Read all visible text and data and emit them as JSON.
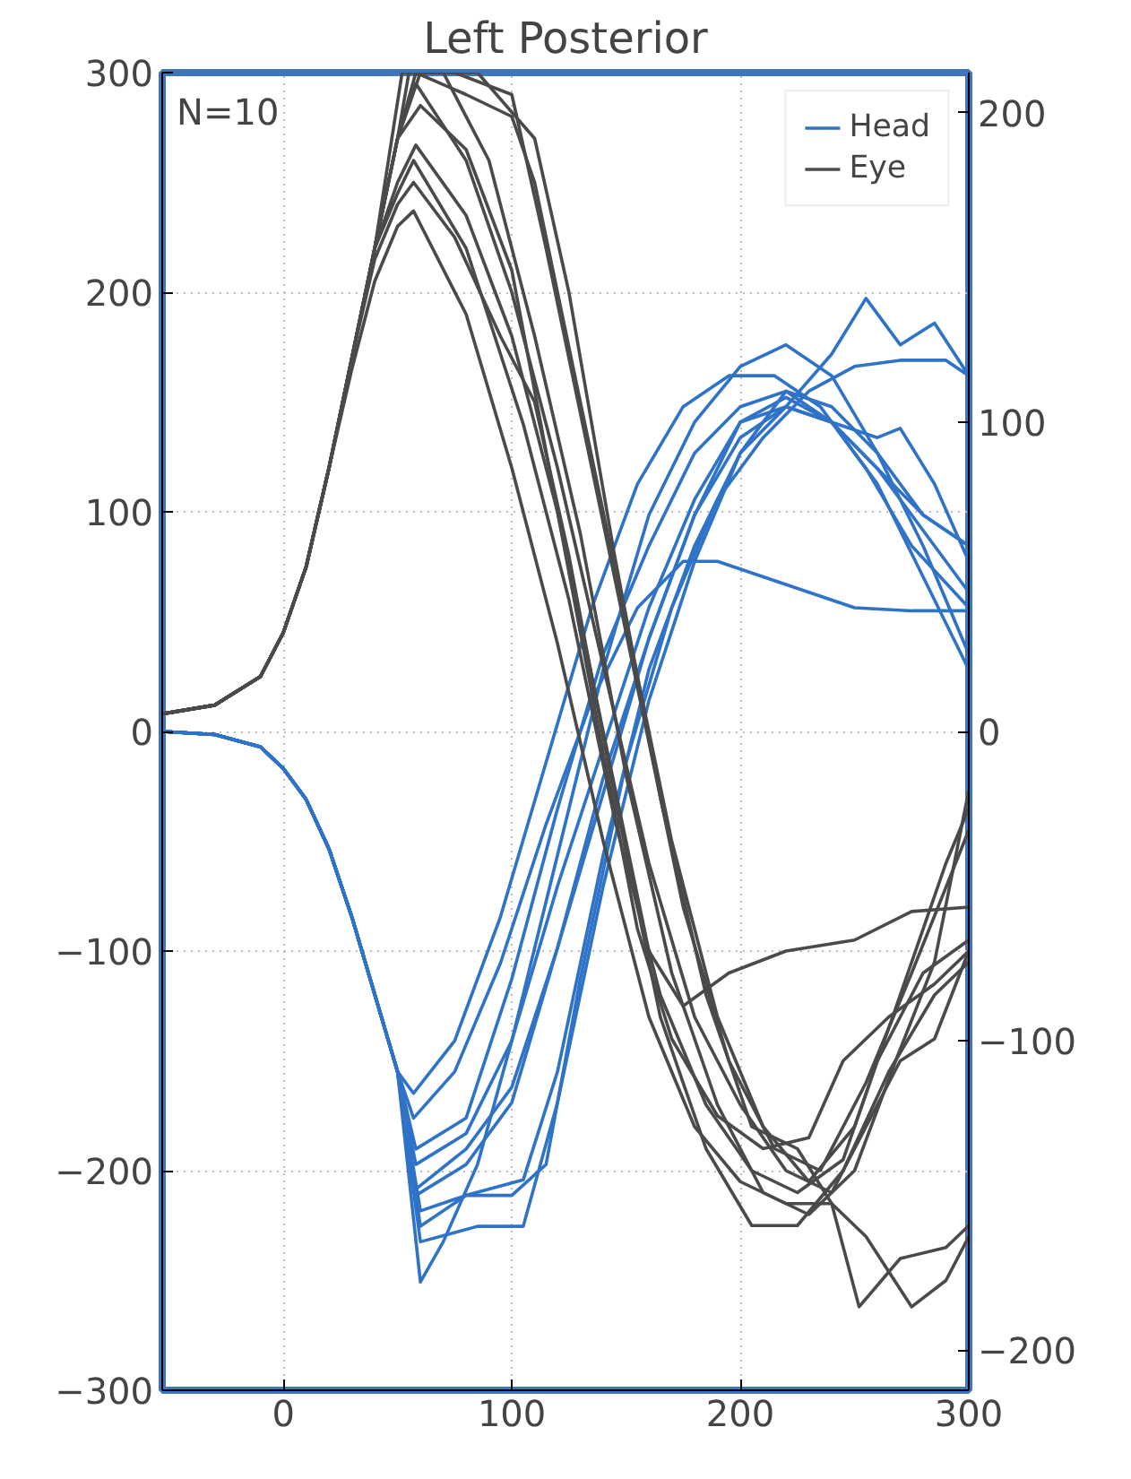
{
  "chart_data": {
    "type": "line",
    "title": "Left Posterior",
    "annotations": [
      "N=10"
    ],
    "xlim": [
      -53,
      300
    ],
    "xticks": [
      0,
      100,
      200,
      300
    ],
    "ylim": [
      -300,
      300
    ],
    "yticks": [
      -300,
      -200,
      -100,
      0,
      100,
      200,
      300
    ],
    "y2lim": [
      -213,
      213
    ],
    "y2ticks": [
      -200,
      -100,
      0,
      100,
      200
    ],
    "grid": true,
    "legend": "top right",
    "series": [
      {
        "name": "Head",
        "color": "#2f73c8",
        "axis": "y2",
        "x": [
          -53,
          -30,
          -10,
          0,
          10,
          20,
          30,
          40,
          50,
          60,
          70,
          85,
          100,
          120,
          140,
          160,
          180,
          200,
          220,
          240,
          260,
          280,
          300
        ],
        "values": [
          0,
          -1,
          -5,
          -12,
          -22,
          -38,
          -60,
          -85,
          -110,
          -178,
          -165,
          -140,
          -100,
          -40,
          20,
          70,
          100,
          118,
          125,
          115,
          90,
          60,
          25
        ]
      },
      {
        "color": "#2f73c8",
        "axis": "y2",
        "x": [
          -53,
          -30,
          -10,
          0,
          10,
          20,
          30,
          40,
          50,
          57,
          75,
          95,
          115,
          135,
          155,
          175,
          195,
          215,
          235,
          255,
          275,
          300
        ],
        "values": [
          0,
          -1,
          -5,
          -12,
          -22,
          -38,
          -60,
          -85,
          -110,
          -117,
          -100,
          -60,
          -10,
          40,
          80,
          105,
          115,
          115,
          105,
          85,
          60,
          40
        ]
      },
      {
        "color": "#2f73c8",
        "axis": "y2",
        "x": [
          -53,
          -30,
          -10,
          0,
          10,
          20,
          30,
          40,
          50,
          57,
          75,
          95,
          115,
          135,
          155,
          175,
          190,
          210,
          230,
          250,
          275,
          300
        ],
        "values": [
          0,
          -1,
          -5,
          -12,
          -22,
          -38,
          -60,
          -85,
          -110,
          -125,
          -110,
          -75,
          -30,
          10,
          40,
          55,
          55,
          50,
          45,
          40,
          39,
          39
        ]
      },
      {
        "color": "#2f73c8",
        "axis": "y2",
        "x": [
          -53,
          -30,
          -10,
          0,
          10,
          20,
          30,
          40,
          50,
          58,
          80,
          100,
          120,
          140,
          160,
          180,
          200,
          220,
          240,
          260,
          270,
          285,
          300
        ],
        "values": [
          0,
          -1,
          -5,
          -12,
          -22,
          -38,
          -60,
          -85,
          -110,
          -135,
          -125,
          -80,
          -25,
          25,
          60,
          90,
          105,
          110,
          100,
          95,
          98,
          80,
          55
        ]
      },
      {
        "color": "#2f73c8",
        "axis": "y2",
        "x": [
          -53,
          -30,
          -10,
          0,
          10,
          20,
          30,
          40,
          50,
          58,
          80,
          100,
          120,
          140,
          160,
          180,
          200,
          220,
          240,
          260,
          280,
          300
        ],
        "values": [
          0,
          -1,
          -5,
          -12,
          -22,
          -38,
          -60,
          -85,
          -110,
          -140,
          -130,
          -100,
          -50,
          -5,
          40,
          75,
          100,
          105,
          100,
          85,
          65,
          45
        ]
      },
      {
        "color": "#2f73c8",
        "axis": "y2",
        "x": [
          -53,
          -30,
          -10,
          0,
          10,
          20,
          30,
          40,
          50,
          58,
          80,
          100,
          120,
          140,
          160,
          180,
          200,
          220,
          240,
          260,
          280,
          300
        ],
        "values": [
          0,
          -1,
          -5,
          -12,
          -22,
          -38,
          -60,
          -85,
          -110,
          -150,
          -140,
          -120,
          -70,
          -15,
          30,
          70,
          100,
          108,
          100,
          80,
          50,
          20
        ]
      },
      {
        "color": "#2f73c8",
        "axis": "y2",
        "x": [
          -53,
          -30,
          -10,
          0,
          10,
          20,
          30,
          40,
          50,
          60,
          80,
          105,
          120,
          140,
          160,
          180,
          200,
          220,
          240,
          255,
          270,
          285,
          300
        ],
        "values": [
          0,
          -1,
          -5,
          -12,
          -22,
          -38,
          -60,
          -85,
          -110,
          -155,
          -150,
          -145,
          -110,
          -40,
          20,
          60,
          90,
          105,
          122,
          140,
          125,
          132,
          115
        ]
      },
      {
        "color": "#2f73c8",
        "axis": "y2",
        "x": [
          -53,
          -30,
          -10,
          0,
          10,
          20,
          30,
          40,
          50,
          60,
          80,
          100,
          115,
          130,
          150,
          170,
          190,
          210,
          230,
          250,
          270,
          290,
          300
        ],
        "values": [
          0,
          -1,
          -5,
          -12,
          -22,
          -38,
          -60,
          -85,
          -110,
          -160,
          -150,
          -150,
          -140,
          -80,
          -10,
          40,
          75,
          95,
          110,
          118,
          120,
          120,
          115
        ]
      },
      {
        "color": "#2f73c8",
        "axis": "y2",
        "x": [
          -53,
          -30,
          -10,
          0,
          10,
          20,
          30,
          40,
          50,
          60,
          85,
          105,
          120,
          140,
          160,
          180,
          200,
          220,
          240,
          260,
          280,
          300
        ],
        "values": [
          0,
          -1,
          -5,
          -12,
          -22,
          -38,
          -60,
          -85,
          -110,
          -165,
          -160,
          -160,
          -120,
          -50,
          10,
          55,
          90,
          110,
          105,
          90,
          70,
          60
        ]
      },
      {
        "color": "#2f73c8",
        "axis": "y2",
        "x": [
          -53,
          -30,
          -10,
          0,
          10,
          20,
          30,
          40,
          50,
          58,
          80,
          100,
          120,
          140,
          160,
          180,
          200,
          220,
          240,
          260,
          280,
          300
        ],
        "values": [
          0,
          -1,
          -5,
          -12,
          -22,
          -38,
          -60,
          -85,
          -110,
          -148,
          -135,
          -115,
          -70,
          -20,
          30,
          70,
          95,
          105,
          100,
          85,
          70,
          60
        ]
      },
      {
        "name": "Eye",
        "color": "#4a4a4a",
        "x": [
          -53,
          -30,
          -10,
          0,
          10,
          20,
          30,
          40,
          50,
          58,
          80,
          100,
          110,
          130,
          150,
          170,
          190,
          210,
          230,
          250,
          270,
          290,
          300
        ],
        "values": [
          8,
          12,
          25,
          45,
          75,
          120,
          170,
          220,
          270,
          300,
          290,
          280,
          250,
          150,
          50,
          -50,
          -130,
          -180,
          -205,
          -180,
          -120,
          -60,
          -35
        ]
      },
      {
        "color": "#4a4a4a",
        "x": [
          -53,
          -30,
          -10,
          0,
          10,
          20,
          30,
          40,
          50,
          55,
          75,
          100,
          115,
          135,
          155,
          175,
          195,
          215,
          235,
          255,
          275,
          300
        ],
        "values": [
          8,
          12,
          25,
          45,
          75,
          120,
          170,
          220,
          270,
          300,
          300,
          290,
          220,
          120,
          20,
          -80,
          -150,
          -190,
          -200,
          -160,
          -110,
          -45
        ]
      },
      {
        "color": "#4a4a4a",
        "x": [
          -53,
          -30,
          -10,
          0,
          10,
          20,
          30,
          40,
          50,
          58,
          80,
          100,
          120,
          140,
          160,
          180,
          200,
          220,
          240,
          255,
          270,
          285,
          300
        ],
        "values": [
          8,
          12,
          25,
          45,
          75,
          120,
          170,
          220,
          270,
          295,
          260,
          200,
          120,
          30,
          -60,
          -130,
          -170,
          -200,
          -210,
          -180,
          -150,
          -140,
          -100
        ]
      },
      {
        "color": "#4a4a4a",
        "x": [
          -53,
          -30,
          -10,
          0,
          10,
          20,
          30,
          40,
          50,
          60,
          80,
          100,
          120,
          140,
          160,
          175,
          195,
          220,
          250,
          275,
          300
        ],
        "values": [
          8,
          12,
          25,
          45,
          75,
          120,
          170,
          220,
          270,
          285,
          265,
          210,
          100,
          0,
          -100,
          -125,
          -110,
          -100,
          -95,
          -82,
          -80
        ]
      },
      {
        "color": "#4a4a4a",
        "x": [
          -53,
          -30,
          -10,
          0,
          10,
          20,
          30,
          40,
          50,
          58,
          80,
          100,
          120,
          140,
          155,
          170,
          190,
          210,
          230,
          245,
          265,
          285,
          300
        ],
        "values": [
          8,
          12,
          25,
          45,
          75,
          120,
          170,
          220,
          250,
          267,
          235,
          180,
          100,
          -10,
          -90,
          -140,
          -175,
          -190,
          -185,
          -150,
          -130,
          -115,
          -100
        ]
      },
      {
        "color": "#4a4a4a",
        "x": [
          -53,
          -30,
          -10,
          0,
          10,
          20,
          30,
          40,
          50,
          57,
          80,
          105,
          125,
          145,
          165,
          185,
          205,
          225,
          245,
          260,
          280,
          300
        ],
        "values": [
          8,
          12,
          25,
          45,
          75,
          120,
          170,
          220,
          245,
          260,
          220,
          140,
          60,
          -40,
          -120,
          -170,
          -200,
          -210,
          -195,
          -150,
          -110,
          -95
        ]
      },
      {
        "color": "#4a4a4a",
        "x": [
          -53,
          -30,
          -10,
          0,
          10,
          20,
          30,
          40,
          50,
          57,
          75,
          95,
          110,
          125,
          145,
          165,
          185,
          205,
          225,
          245,
          265,
          285,
          300
        ],
        "values": [
          8,
          12,
          25,
          45,
          75,
          120,
          170,
          215,
          240,
          250,
          225,
          180,
          150,
          80,
          -30,
          -130,
          -190,
          -225,
          -225,
          -200,
          -155,
          -120,
          -105
        ]
      },
      {
        "color": "#4a4a4a",
        "x": [
          -53,
          -30,
          -10,
          0,
          10,
          20,
          30,
          40,
          50,
          57,
          80,
          100,
          120,
          140,
          160,
          180,
          200,
          220,
          240,
          255,
          275,
          290,
          300
        ],
        "values": [
          8,
          12,
          25,
          45,
          75,
          120,
          165,
          205,
          230,
          237,
          190,
          120,
          40,
          -50,
          -130,
          -180,
          -205,
          -215,
          -215,
          -230,
          -262,
          -250,
          -230
        ]
      },
      {
        "color": "#4a4a4a",
        "x": [
          -53,
          -30,
          -10,
          0,
          10,
          20,
          30,
          40,
          50,
          60,
          85,
          110,
          125,
          145,
          165,
          185,
          205,
          225,
          240,
          252,
          270,
          290,
          300
        ],
        "values": [
          8,
          12,
          25,
          45,
          75,
          120,
          170,
          220,
          270,
          300,
          300,
          270,
          200,
          80,
          -30,
          -120,
          -180,
          -190,
          -215,
          -262,
          -240,
          -235,
          -225
        ]
      },
      {
        "color": "#4a4a4a",
        "x": [
          -53,
          -30,
          -10,
          0,
          10,
          20,
          30,
          40,
          52,
          70,
          90,
          110,
          130,
          150,
          170,
          190,
          210,
          230,
          250,
          268,
          285,
          300
        ],
        "values": [
          8,
          12,
          25,
          45,
          75,
          120,
          170,
          220,
          300,
          300,
          260,
          180,
          90,
          -20,
          -110,
          -170,
          -210,
          -220,
          -200,
          -150,
          -105,
          -27
        ]
      }
    ]
  }
}
